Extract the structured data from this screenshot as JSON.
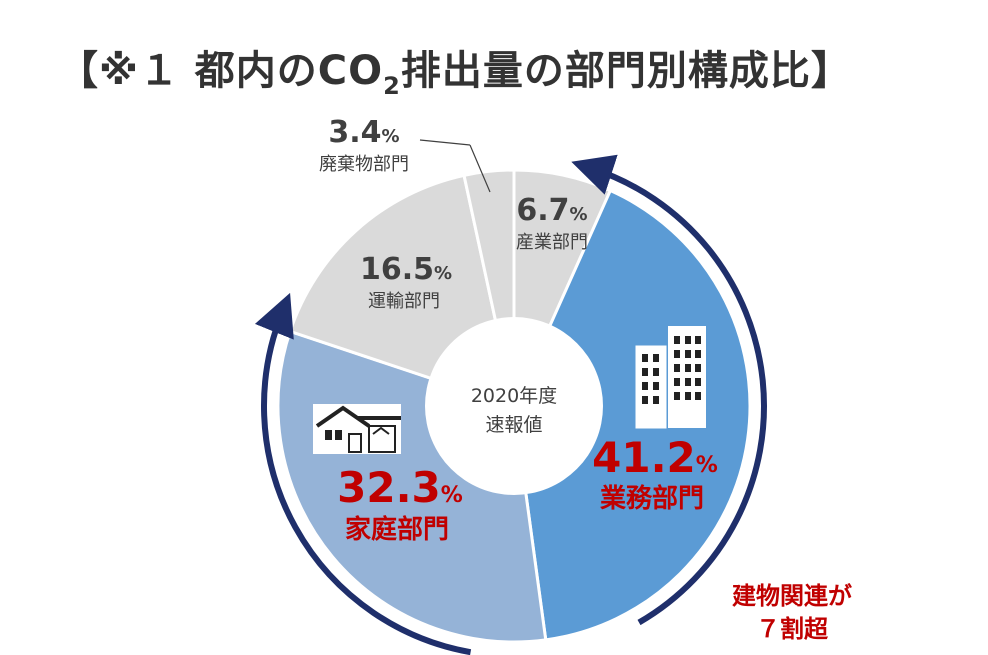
{
  "title": {
    "prefix": "【※１ 都内のCO",
    "subscript": "2",
    "suffix": "排出量の部門別構成比】"
  },
  "center_label": {
    "line1": "2020年度",
    "line2": "速報値"
  },
  "annotation": {
    "line1": "建物関連が",
    "line2": "７割超"
  },
  "icons": [
    "office-building-icon",
    "house-icon"
  ],
  "colors": {
    "business": "#5b9bd5",
    "household": "#95b3d7",
    "other": "#dadada",
    "highlight_text": "#c00000",
    "arrow": "#1f2f6b",
    "grey_text": "#404040"
  },
  "chart_data": {
    "type": "pie",
    "variant": "donut",
    "title": "【※１ 都内のCO2排出量の部門別構成比】",
    "slices": [
      {
        "label": "産業部門",
        "value": 6.7,
        "display": "6.7",
        "unit": "%",
        "color": "#dadada"
      },
      {
        "label": "業務部門",
        "value": 41.2,
        "display": "41.2",
        "unit": "%",
        "color": "#5b9bd5"
      },
      {
        "label": "家庭部門",
        "value": 32.3,
        "display": "32.3",
        "unit": "%",
        "color": "#95b3d7"
      },
      {
        "label": "運輸部門",
        "value": 16.5,
        "display": "16.5",
        "unit": "%",
        "color": "#dadada"
      },
      {
        "label": "廃棄物部門",
        "value": 3.4,
        "display": "3.4",
        "unit": "%",
        "color": "#dadada"
      }
    ],
    "start": "top",
    "direction": "clockwise"
  }
}
